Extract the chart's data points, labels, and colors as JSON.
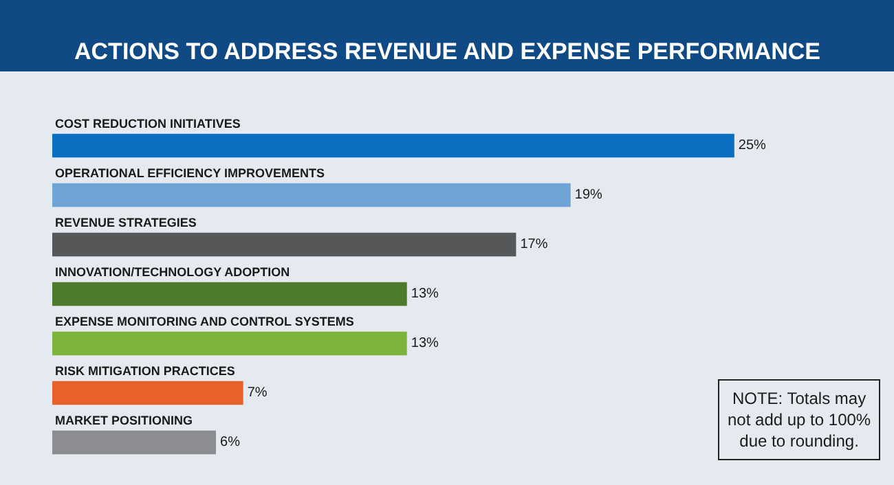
{
  "chart_data": {
    "type": "bar",
    "orientation": "horizontal",
    "title": "ACTIONS TO ADDRESS REVENUE AND EXPENSE PERFORMANCE",
    "categories": [
      "COST REDUCTION INITIATIVES",
      "OPERATIONAL EFFICIENCY IMPROVEMENTS",
      "REVENUE STRATEGIES",
      "INNOVATION/TECHNOLOGY ADOPTION",
      "EXPENSE MONITORING AND CONTROL SYSTEMS",
      "RISK MITIGATION PRACTICES",
      "MARKET POSITIONING"
    ],
    "values": [
      25,
      19,
      17,
      13,
      13,
      7,
      6
    ],
    "value_labels": [
      "25%",
      "19%",
      "17%",
      "13%",
      "13%",
      "7%",
      "6%"
    ],
    "colors": [
      "#0b6fc1",
      "#6fa3d5",
      "#555759",
      "#4e7a2c",
      "#7cb33d",
      "#e8612b",
      "#8b8d90"
    ],
    "annotations": [
      "NOTE: Totals may\nnot add up to 100%\ndue to rounding."
    ],
    "legend": false,
    "tick_labels": false
  }
}
